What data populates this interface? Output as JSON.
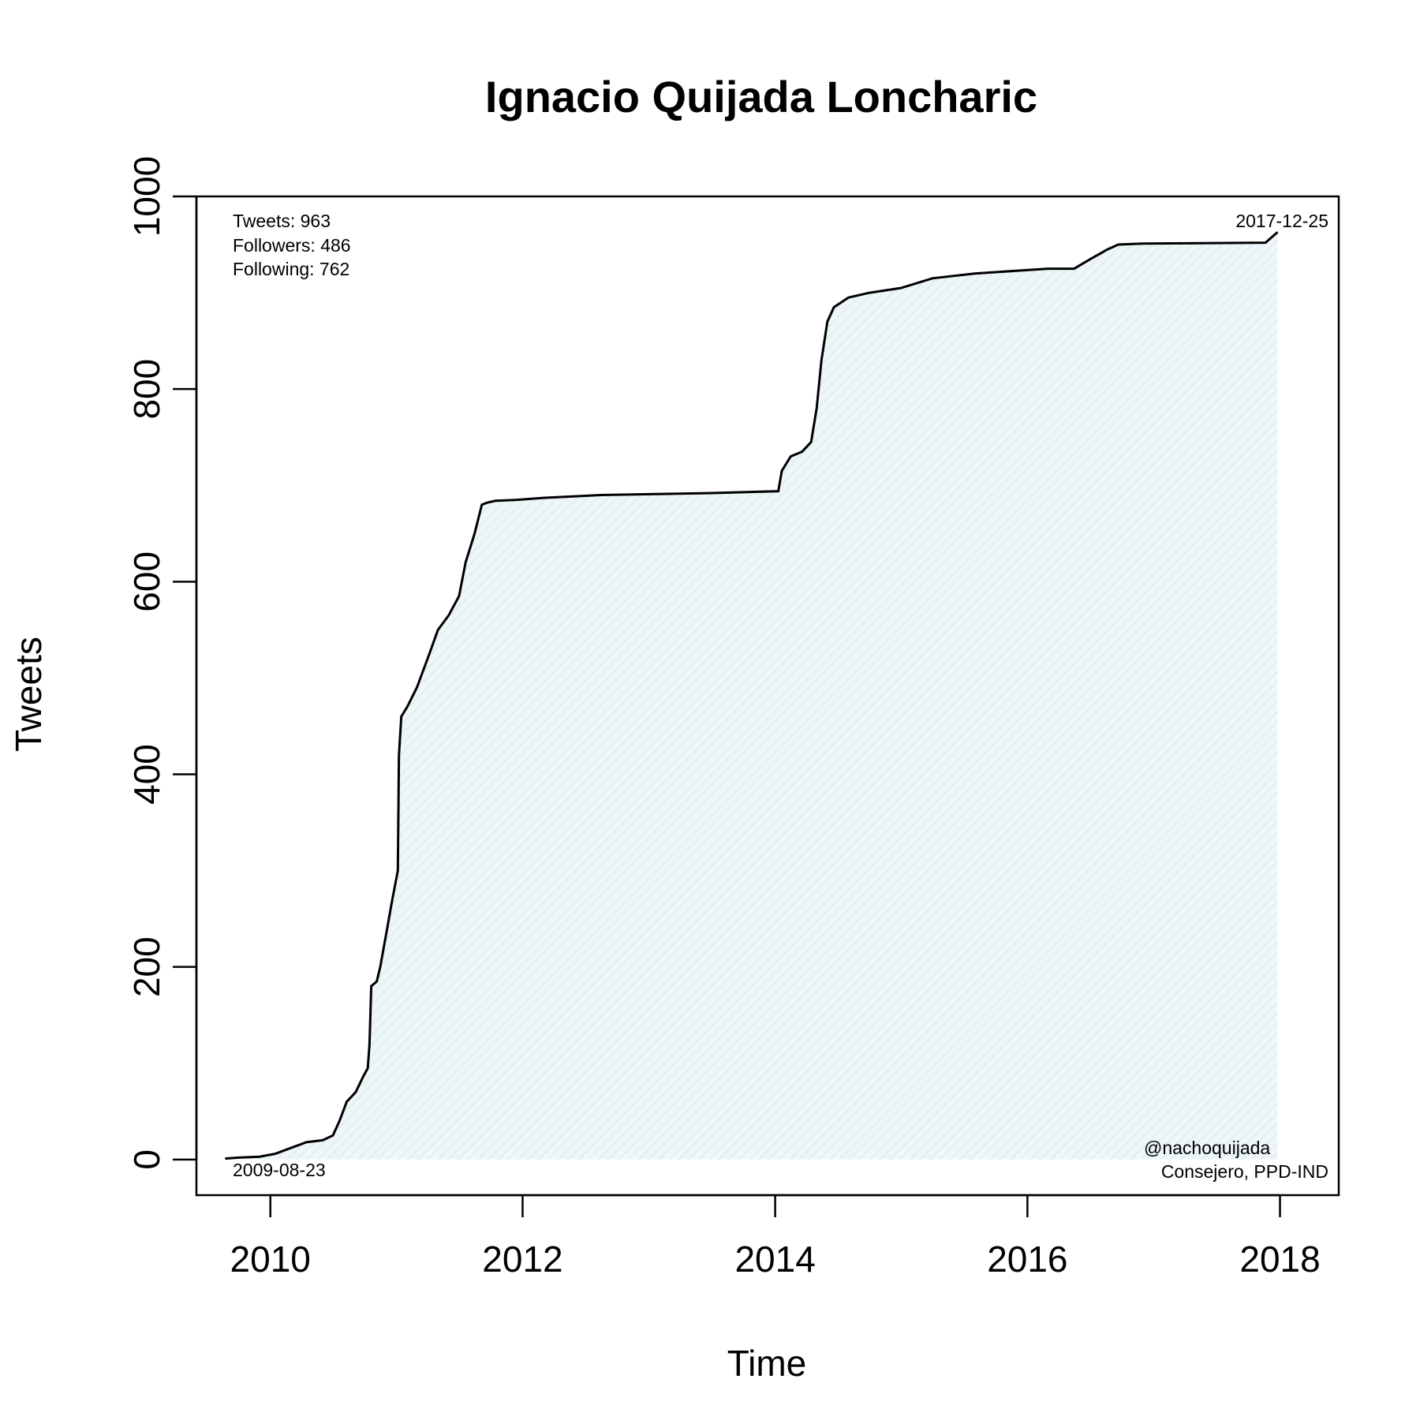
{
  "chart_data": {
    "type": "area",
    "title": "Ignacio Quijada Loncharic",
    "xlabel": "Time",
    "ylabel": "Tweets",
    "xlim": [
      "2009-06-01",
      "2018-06-20"
    ],
    "ylim": [
      -37,
      1000
    ],
    "x_ticks": [
      "2010",
      "2012",
      "2014",
      "2016",
      "2018"
    ],
    "y_ticks": [
      "0",
      "200",
      "400",
      "600",
      "800",
      "1000"
    ],
    "grid": false,
    "legend": "none",
    "line_color": "#000000",
    "fill_color": "#eef6f8",
    "stats": [
      "Tweets: 963",
      "Followers: 486",
      "Following: 762"
    ],
    "start_label": "2009-08-23",
    "end_label": "2017-12-25",
    "handle": "@nachoquijada",
    "role": "Consejero, PPD-IND",
    "series": [
      {
        "x": [
          "2009-08-23",
          "2009-10-01",
          "2009-12-01",
          "2010-01-15",
          "2010-03-01",
          "2010-04-15",
          "2010-06-01",
          "2010-07-01",
          "2010-07-20",
          "2010-08-10",
          "2010-09-05",
          "2010-09-25",
          "2010-10-10",
          "2010-10-15",
          "2010-10-20",
          "2010-11-05",
          "2010-11-15",
          "2010-12-05",
          "2010-12-20",
          "2011-01-05",
          "2011-01-08",
          "2011-01-15",
          "2011-02-01",
          "2011-03-01",
          "2011-04-01",
          "2011-05-01",
          "2011-06-01",
          "2011-07-01",
          "2011-07-20",
          "2011-08-15",
          "2011-09-05",
          "2011-09-20",
          "2011-10-15",
          "2011-12-15",
          "2012-03-01",
          "2012-08-15",
          "2013-07-01",
          "2014-01-10",
          "2014-01-20",
          "2014-02-15",
          "2014-03-20",
          "2014-04-15",
          "2014-05-01",
          "2014-05-15",
          "2014-06-01",
          "2014-06-20",
          "2014-08-01",
          "2014-10-01",
          "2015-01-01",
          "2015-04-01",
          "2015-08-01",
          "2016-03-01",
          "2016-05-15",
          "2016-07-01",
          "2016-08-20",
          "2016-09-20",
          "2016-12-01",
          "2017-11-20",
          "2017-12-25"
        ],
        "y": [
          1,
          2,
          3,
          6,
          12,
          18,
          20,
          25,
          40,
          60,
          70,
          85,
          95,
          120,
          180,
          185,
          200,
          240,
          270,
          300,
          420,
          460,
          470,
          490,
          520,
          550,
          565,
          585,
          620,
          650,
          680,
          682,
          684,
          685,
          687,
          690,
          692,
          694,
          715,
          730,
          735,
          745,
          780,
          830,
          870,
          885,
          895,
          900,
          905,
          915,
          920,
          925,
          925,
          935,
          945,
          950,
          951,
          952,
          963
        ]
      }
    ]
  }
}
